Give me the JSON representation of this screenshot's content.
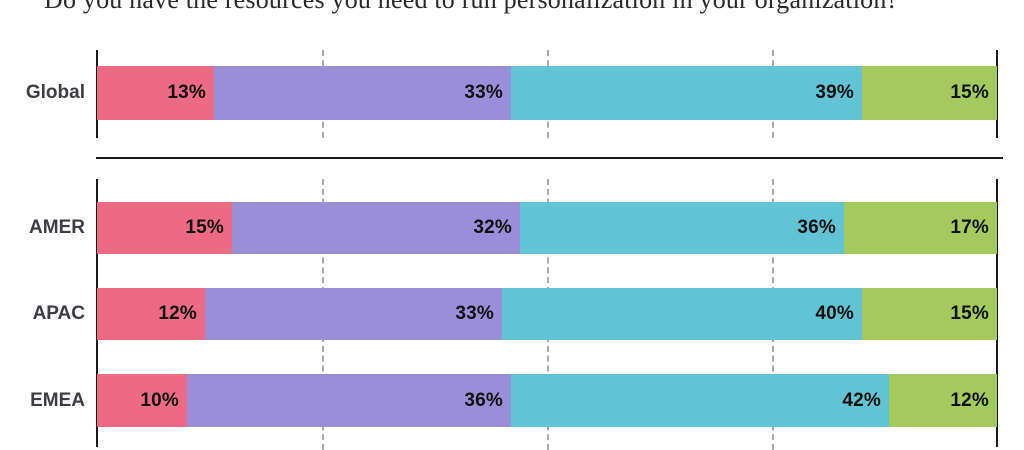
{
  "title": "Do you have the resources you need to run personalization in your organization?",
  "chart_data": {
    "type": "bar",
    "variant": "stacked-horizontal",
    "title": "Do you have the resources you need to run personalization in your organization?",
    "categories": [
      "Global",
      "AMER",
      "APAC",
      "EMEA"
    ],
    "series": [
      {
        "name": "series-1-rose",
        "color": "#ED6A85",
        "values": [
          13,
          15,
          12,
          10
        ]
      },
      {
        "name": "series-2-purple",
        "color": "#9B8ED9",
        "values": [
          33,
          32,
          33,
          36
        ]
      },
      {
        "name": "series-3-teal",
        "color": "#62C3D6",
        "values": [
          39,
          36,
          40,
          42
        ]
      },
      {
        "name": "series-4-green",
        "color": "#A4C95C",
        "values": [
          15,
          17,
          15,
          12
        ]
      }
    ],
    "value_suffix": "%",
    "xlim": [
      0,
      100
    ],
    "gridlines_percent": [
      25,
      50,
      75
    ],
    "legend": "none",
    "panels": [
      {
        "categories": [
          "Global"
        ]
      },
      {
        "categories": [
          "AMER",
          "APAC",
          "EMEA"
        ]
      }
    ],
    "axis_color": "#1a1a1a",
    "gridline_color": "#ababab",
    "divider_color": "#1a1a1a",
    "category_label_color": "#3d3d46",
    "value_label_color": "#111111"
  }
}
